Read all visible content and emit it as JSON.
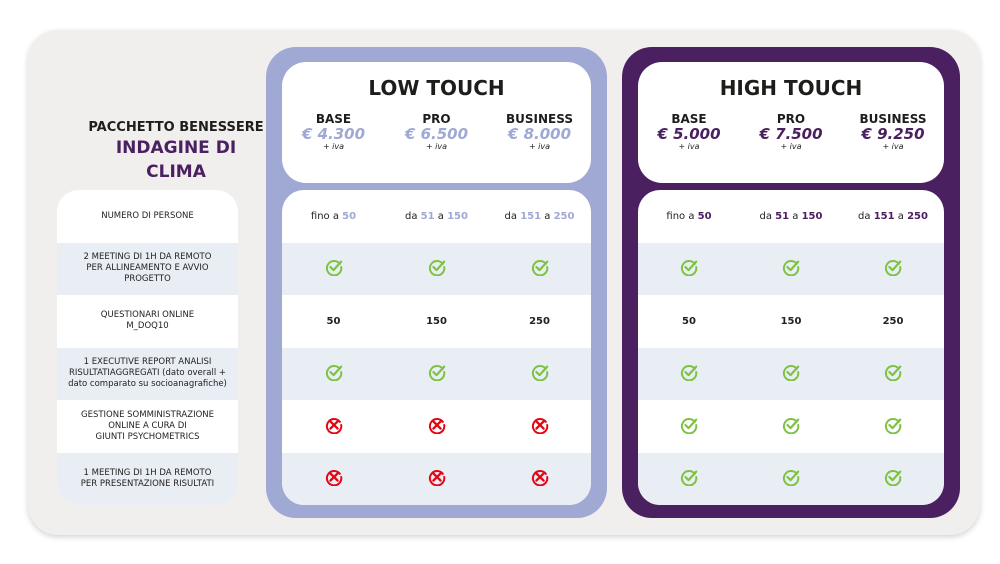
{
  "title": {
    "line1": "PACCHETTO BENESSERE",
    "line2": "INDAGINE DI",
    "line3": "CLIMA"
  },
  "features": [
    "NUMERO DI PERSONE",
    "2 MEETING DI 1H DA REMOTO\nPER ALLINEAMENTO E AVVIO\nPROGETTO",
    "QUESTIONARI ONLINE\nM_DOQ10",
    "1 EXECUTIVE REPORT ANALISI\nRISULTATIAGGREGATI (dato overall +\ndato comparato su socioanagrafiche)",
    "GESTIONE SOMMINISTRAZIONE\nONLINE A CURA DI\nGIUNTI PSYCHOMETRICS",
    "1 MEETING DI 1H DA REMOTO\nPER PRESENTAZIONE RISULTATI"
  ],
  "colors": {
    "low": "#a0a8d4",
    "high": "#4b2060",
    "check": "#7dc242",
    "cross": "#e30613"
  },
  "plans": [
    {
      "name": "LOW TOUCH",
      "key": "low",
      "tiers": [
        {
          "name": "BASE",
          "price": "€ 4.300",
          "iva": "+ iva",
          "persons": [
            "fino a ",
            "50"
          ],
          "questionari": "50",
          "rows": [
            "check",
            "check",
            "cross",
            "cross"
          ]
        },
        {
          "name": "PRO",
          "price": "€ 6.500",
          "iva": "+ iva",
          "persons": [
            "da ",
            "51",
            " a ",
            "150"
          ],
          "questionari": "150",
          "rows": [
            "check",
            "check",
            "cross",
            "cross"
          ]
        },
        {
          "name": "BUSINESS",
          "price": "€ 8.000",
          "iva": "+ iva",
          "persons": [
            "da ",
            "151",
            " a ",
            "250"
          ],
          "questionari": "250",
          "rows": [
            "check",
            "check",
            "cross",
            "cross"
          ]
        }
      ]
    },
    {
      "name": "HIGH TOUCH",
      "key": "high",
      "tiers": [
        {
          "name": "BASE",
          "price": "€ 5.000",
          "iva": "+ iva",
          "persons": [
            "fino a ",
            "50"
          ],
          "questionari": "50",
          "rows": [
            "check",
            "check",
            "check",
            "check"
          ]
        },
        {
          "name": "PRO",
          "price": "€ 7.500",
          "iva": "+ iva",
          "persons": [
            "da ",
            "51",
            " a ",
            "150"
          ],
          "questionari": "150",
          "rows": [
            "check",
            "check",
            "check",
            "check"
          ]
        },
        {
          "name": "BUSINESS",
          "price": "€ 9.250",
          "iva": "+ iva",
          "persons": [
            "da ",
            "151",
            " a ",
            "250"
          ],
          "questionari": "250",
          "rows": [
            "check",
            "check",
            "check",
            "check"
          ]
        }
      ]
    }
  ]
}
